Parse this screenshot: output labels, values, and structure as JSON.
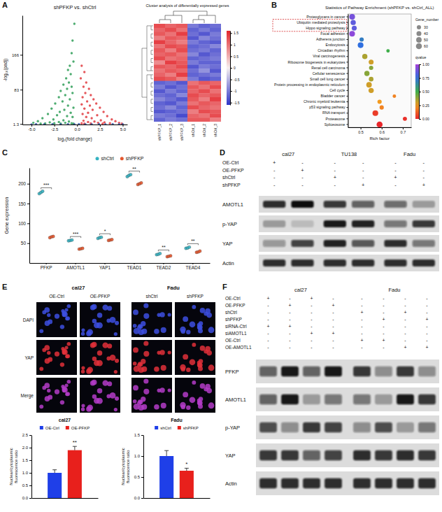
{
  "panel_labels": [
    "A",
    "B",
    "C",
    "D",
    "E",
    "F"
  ],
  "chart_data": [
    {
      "type": "scatter",
      "title": "shPFKP vs. shCtrl",
      "x_label": "log₂(fold change)",
      "y_label": "-log₁₀(padj)",
      "xlim": [
        -6,
        5.5
      ],
      "ylim": [
        0,
        260
      ],
      "xticks": [
        {
          "value": -5,
          "label": "-5.0"
        },
        -2.5,
        {
          "value": 0,
          "label": "0.0"
        },
        2.5,
        {
          "value": 5,
          "label": "5.0"
        }
      ],
      "yticks": [
        1.3,
        83,
        166
      ],
      "series": [
        {
          "color": "#2e9e57",
          "x": [
            -0.3,
            -0.5,
            -0.6,
            -0.4,
            -0.8,
            -0.7,
            -1.0,
            -1.2,
            -0.9,
            -1.5,
            -0.6,
            -1.1,
            -1.8,
            -0.5,
            -1.3,
            -2.0,
            -0.8,
            -1.6,
            -2.4,
            -1.0,
            -0.4,
            -2.8,
            -1.4,
            -1.9,
            -0.7,
            -3.2,
            -2.2,
            -1.1,
            -0.5,
            -3.8,
            -2.6,
            -1.5,
            -4.3,
            -0.9,
            -2.0,
            -3.0,
            -4.8,
            -1.3,
            -2.5,
            -0.6,
            -3.5,
            -1.8,
            -4.0,
            -0.4
          ],
          "values": [
            240,
            200,
            170,
            150,
            140,
            120,
            130,
            110,
            100,
            95,
            90,
            85,
            80,
            75,
            70,
            65,
            60,
            55,
            50,
            45,
            40,
            38,
            35,
            30,
            28,
            25,
            22,
            20,
            18,
            15,
            12,
            10,
            8,
            7,
            6,
            5,
            4,
            4,
            3,
            3,
            2.5,
            2,
            2,
            2
          ]
        },
        {
          "color": "#e0393e",
          "x": [
            0.5,
            0.8,
            0.4,
            1.0,
            0.7,
            1.3,
            0.9,
            1.5,
            0.6,
            1.8,
            1.1,
            2.1,
            0.5,
            1.4,
            2.5,
            0.8,
            1.7,
            2.9,
            1.2,
            0.6,
            2.2,
            3.3,
            1.0,
            1.6,
            3.8,
            2.6,
            0.7,
            4.2,
            1.9,
            1.2,
            3.0,
            4.6,
            2.3,
            0.5,
            3.6,
            1.5,
            2.8,
            4.9,
            0.8
          ],
          "values": [
            140,
            125,
            110,
            100,
            90,
            85,
            75,
            70,
            65,
            60,
            55,
            50,
            48,
            45,
            40,
            38,
            35,
            30,
            28,
            25,
            22,
            20,
            18,
            15,
            12,
            10,
            9,
            8,
            7,
            6,
            5,
            4,
            4,
            3,
            3,
            2.5,
            2,
            2,
            2
          ]
        },
        {
          "color": "#3b5ba9",
          "x": [
            -4.5,
            -3.6,
            -2.7,
            -1.8,
            -1.0,
            -0.3,
            0.2,
            0.9,
            1.6,
            2.4,
            3.1,
            3.9,
            4.6,
            -5.0,
            5.0
          ],
          "values": [
            0.8,
            0.5,
            1.0,
            0.6,
            0.9,
            0.4,
            1.1,
            0.7,
            0.3,
            1.0,
            0.5,
            0.8,
            0.4,
            0.2,
            0.6
          ]
        }
      ]
    },
    {
      "type": "heatmap",
      "title": "Cluster analysis of differentially expressed genes",
      "columns": [
        "shPFKP_1",
        "shPFKP_2",
        "shPFKP_3",
        "shCtrl_1",
        "shCtrl_2",
        "shCtrl_3"
      ],
      "cells": [
        [
          1.3,
          1.1,
          1.2,
          -1.0,
          -1.2,
          -1.1
        ],
        [
          1.1,
          1.3,
          1.0,
          -1.2,
          -1.0,
          -1.2
        ],
        [
          1.2,
          1.0,
          1.4,
          -1.1,
          -1.3,
          -1.0
        ],
        [
          0.9,
          1.2,
          1.1,
          -1.3,
          -0.9,
          -1.1
        ],
        [
          1.4,
          1.1,
          0.9,
          -1.0,
          -1.2,
          -1.3
        ],
        [
          1.0,
          1.3,
          1.2,
          -1.2,
          -1.1,
          -0.9
        ],
        [
          1.2,
          0.9,
          1.3,
          -1.1,
          -1.0,
          -1.2
        ],
        [
          1.1,
          1.2,
          1.0,
          -0.9,
          -1.3,
          -1.1
        ],
        [
          1.3,
          1.0,
          1.1,
          -1.2,
          -1.1,
          -1.0
        ],
        [
          0.8,
          1.4,
          1.2,
          -1.0,
          -1.2,
          -1.2
        ],
        [
          1.2,
          1.1,
          1.3,
          -1.3,
          -1.0,
          -1.1
        ],
        [
          1.0,
          1.2,
          1.1,
          -1.1,
          -0.8,
          -1.3
        ],
        [
          1.1,
          0.9,
          1.4,
          -1.2,
          -1.1,
          -1.0
        ],
        [
          1.3,
          1.2,
          0.9,
          -1.0,
          -1.3,
          -1.2
        ],
        [
          -1.2,
          -1.1,
          -1.3,
          1.0,
          1.2,
          1.1
        ],
        [
          -1.0,
          -1.3,
          -1.1,
          1.2,
          1.0,
          1.3
        ],
        [
          -1.3,
          -1.0,
          -1.2,
          1.1,
          1.3,
          1.0
        ],
        [
          -1.1,
          -1.2,
          -0.9,
          1.3,
          1.1,
          1.2
        ],
        [
          -0.9,
          -1.1,
          -1.3,
          1.2,
          0.9,
          1.4
        ],
        [
          -1.2,
          -1.3,
          -1.0,
          1.0,
          1.2,
          1.1
        ],
        [
          -1.1,
          -0.9,
          -1.2,
          1.3,
          1.1,
          1.0
        ],
        [
          -1.3,
          -1.2,
          -1.1,
          0.9,
          1.3,
          1.2
        ],
        [
          -1.0,
          -1.1,
          -1.4,
          1.1,
          1.0,
          1.3
        ],
        [
          -1.2,
          -1.0,
          -1.1,
          1.2,
          1.2,
          0.9
        ]
      ],
      "colorbar": {
        "range": [
          -1.6,
          1.6
        ],
        "ticks": [
          1.5,
          1,
          0.5,
          0,
          -0.5,
          -1,
          -1.5
        ]
      }
    },
    {
      "type": "bubble",
      "title": "Statistics of Pathway Enrichment (shPFKP vs. shCtrl_ALL)",
      "x_label": "Rich factor",
      "categories": [
        "Proteoglycans in cancer",
        "Ubiquitin mediated proteolysis",
        "Hippo signaling pathway",
        "Focal adhesion",
        "Adherens junction",
        "Endocytosis",
        "Circadian rhythm",
        "Viral carcinogenesis",
        "Ribosome biogenesis in eukaryotes",
        "Renal cell carcinoma",
        "Cellular senescence",
        "Small cell lung cancer",
        "Protein processing in endoplasmic reticulum",
        "Cell cycle",
        "Bladder cancer",
        "Chronic myeloid leukemia",
        "p53 signaling pathway",
        "RNA transport",
        "Proteasome",
        "Spliceosome"
      ],
      "values": [
        0.46,
        0.465,
        0.47,
        0.46,
        0.505,
        0.5,
        0.63,
        0.52,
        0.55,
        0.55,
        0.53,
        0.55,
        0.54,
        0.55,
        0.66,
        0.59,
        0.6,
        0.57,
        0.71,
        0.59
      ],
      "size": [
        55,
        45,
        42,
        52,
        30,
        55,
        20,
        45,
        40,
        30,
        45,
        35,
        50,
        45,
        20,
        30,
        30,
        55,
        28,
        60
      ],
      "qvalue": [
        0.9,
        0.85,
        0.85,
        0.95,
        0.7,
        0.75,
        0.5,
        0.35,
        0.3,
        0.4,
        0.4,
        0.35,
        0.3,
        0.3,
        0.2,
        0.25,
        0.2,
        0.05,
        0.02,
        0
      ],
      "xlim": [
        0.44,
        0.74
      ],
      "xticks": [
        0.5,
        0.6,
        0.7
      ],
      "highlight": [
        1,
        2
      ],
      "size_legend": {
        "title": "Gene_number",
        "values": [
          30,
          40,
          50,
          60
        ]
      },
      "colorbar": {
        "title": "qvalue",
        "range": [
          0,
          1
        ],
        "ticks": [
          {
            "value": 0,
            "label": "0.00"
          },
          0.25,
          {
            "value": 0.5,
            "label": "0.50"
          },
          0.75,
          {
            "value": 1,
            "label": "1.00"
          }
        ]
      }
    },
    {
      "type": "dot",
      "y_label": "Gene expression",
      "categories": [
        "PFKP",
        "AMOTL1",
        "YAP1",
        "TEAD1",
        "TEAD2",
        "TEAD4"
      ],
      "ylim": [
        0,
        240
      ],
      "yticks": [
        50,
        100,
        150,
        200
      ],
      "legend": "top",
      "annotations": [
        "***",
        "***",
        "*",
        "**",
        "**",
        "**"
      ],
      "series": [
        {
          "name": "shCtrl",
          "color": "#35b3c2",
          "values": [
            [
              175,
              178,
              181
            ],
            [
              56,
              57,
              58
            ],
            [
              62,
              64,
              65
            ],
            [
              218,
              221,
              223
            ],
            [
              21,
              22,
              24
            ],
            [
              37,
              38,
              40
            ]
          ]
        },
        {
          "name": "shPFKP",
          "color": "#e4572e",
          "values": [
            [
              64,
              66,
              67
            ],
            [
              35,
              36,
              37
            ],
            [
              57,
              58,
              59
            ],
            [
              198,
              200,
              202
            ],
            [
              16,
              17,
              18
            ],
            [
              27,
              28,
              30
            ]
          ]
        }
      ]
    },
    {
      "type": "bar",
      "title": "cal27",
      "y_label": "Nuclear/cytoplasmic fluorescence ratio",
      "categories": [
        null
      ],
      "ylim": [
        0,
        2.5
      ],
      "yticks": [
        {
          "value": 0,
          "label": "0.0"
        },
        0.5,
        {
          "value": 1,
          "label": "1.0"
        },
        1.5,
        {
          "value": 2,
          "label": "2.0"
        },
        2.5
      ],
      "legend": "top",
      "tick_labels": "y",
      "series": [
        {
          "name": "OE-Ctrl",
          "color": "#1f3fe8",
          "values": [
            1
          ],
          "error": [
            0.12
          ]
        },
        {
          "name": "OE-PFKP",
          "color": "#e8201c",
          "values": [
            1.9
          ],
          "error": [
            0.15
          ],
          "annotation": "**"
        }
      ]
    },
    {
      "type": "bar",
      "title": "Fadu",
      "y_label": "Nuclear/cytoplasmic fluorescence ratio",
      "categories": [
        null
      ],
      "ylim": [
        0,
        1.5
      ],
      "yticks": [
        {
          "value": 0,
          "label": "0.0"
        },
        0.5,
        {
          "value": 1,
          "label": "1.0"
        },
        1.5
      ],
      "legend": "top",
      "tick_labels": "y",
      "series": [
        {
          "name": "shCtrl",
          "color": "#1f3fe8",
          "values": [
            1
          ],
          "error": [
            0.13
          ]
        },
        {
          "name": "shPFKP",
          "color": "#e8201c",
          "values": [
            0.65
          ],
          "error": [
            0.06
          ],
          "annotation": "*"
        }
      ]
    }
  ],
  "blots": [
    {
      "groups": [
        {
          "title": "cal27",
          "span": 2
        },
        {
          "title": "TU138",
          "span": 2
        },
        {
          "title": "Fadu",
          "span": 2
        }
      ],
      "conditions": [
        {
          "label": "OE-Ctrl",
          "signs": [
            "+",
            "-",
            "-",
            "-",
            "-",
            "-"
          ]
        },
        {
          "label": "OE-PFKP",
          "signs": [
            "-",
            "+",
            "-",
            "-",
            "-",
            "-"
          ]
        },
        {
          "label": "shCtrl",
          "signs": [
            "-",
            "-",
            "+",
            "-",
            "+",
            "-"
          ]
        },
        {
          "label": "shPFKP",
          "signs": [
            "-",
            "-",
            "-",
            "+",
            "-",
            "+"
          ]
        }
      ],
      "bands": [
        {
          "label": "AMOTL1",
          "intensity": [
            0.85,
            1,
            0.8,
            0.6,
            0.55,
            0.3
          ]
        },
        {
          "label": "p-YAP",
          "intensity": [
            0.3,
            0.15,
            0.95,
            0.9,
            0.5,
            0.8
          ]
        },
        {
          "label": "YAP",
          "intensity": [
            0.35,
            0.75,
            0.9,
            0.65,
            0.85,
            0.5
          ]
        },
        {
          "label": "Actin",
          "intensity": [
            0.85,
            0.85,
            0.85,
            0.85,
            0.85,
            0.85
          ]
        }
      ]
    },
    {
      "groups": [
        {
          "title": "cal27",
          "span": 4
        },
        {
          "title": "Fadu",
          "span": 4
        }
      ],
      "conditions": [
        {
          "label": "OE-Ctrl",
          "signs": [
            "+",
            "-",
            "+",
            "-",
            "-",
            "-",
            "-",
            "-"
          ]
        },
        {
          "label": "OE-PFKP",
          "signs": [
            "-",
            "+",
            "-",
            "+",
            "-",
            "-",
            "-",
            "-"
          ]
        },
        {
          "label": "shCtrl",
          "signs": [
            "-",
            "-",
            "-",
            "-",
            "+",
            "-",
            "+",
            "-"
          ]
        },
        {
          "label": "shPFKP",
          "signs": [
            "-",
            "-",
            "-",
            "-",
            "-",
            "+",
            "-",
            "+"
          ]
        },
        {
          "label": "siRNA-Ctrl",
          "signs": [
            "+",
            "+",
            "-",
            "-",
            "-",
            "-",
            "-",
            "-"
          ]
        },
        {
          "label": "siAMOTL1",
          "signs": [
            "-",
            "-",
            "+",
            "+",
            "-",
            "-",
            "-",
            "-"
          ]
        },
        {
          "label": "OE-Ctrl",
          "signs": [
            "-",
            "-",
            "-",
            "-",
            "+",
            "+",
            "-",
            "-"
          ]
        },
        {
          "label": "OE-AMOTL1",
          "signs": [
            "-",
            "-",
            "-",
            "-",
            "-",
            "-",
            "+",
            "+"
          ]
        }
      ],
      "bands": [
        {
          "label": "PFKP",
          "intensity": [
            0.6,
            0.95,
            0.6,
            0.95,
            0.8,
            0.4,
            0.8,
            0.4
          ]
        },
        {
          "label": "AMOTL1",
          "intensity": [
            0.6,
            0.95,
            0.3,
            0.5,
            0.5,
            0.3,
            0.95,
            0.8
          ]
        },
        {
          "label": "p-YAP",
          "intensity": [
            0.7,
            0.4,
            0.8,
            0.75,
            0.4,
            0.7,
            0.3,
            0.5
          ]
        },
        {
          "label": "YAP",
          "intensity": [
            0.8,
            0.8,
            0.6,
            0.75,
            0.85,
            0.8,
            0.85,
            0.8
          ]
        },
        {
          "label": "Actin",
          "intensity": [
            0.85,
            0.85,
            0.85,
            0.85,
            0.85,
            0.85,
            0.85,
            0.85
          ]
        }
      ]
    }
  ],
  "microscopy": {
    "groups": [
      {
        "title": "cal27",
        "columns": [
          "OE-Ctrl",
          "OE-PFKP"
        ]
      },
      {
        "title": "Fadu",
        "columns": [
          "shCtrl",
          "shPFKP"
        ]
      }
    ],
    "rows": [
      "DAPI",
      "YAP",
      "Merge"
    ]
  }
}
